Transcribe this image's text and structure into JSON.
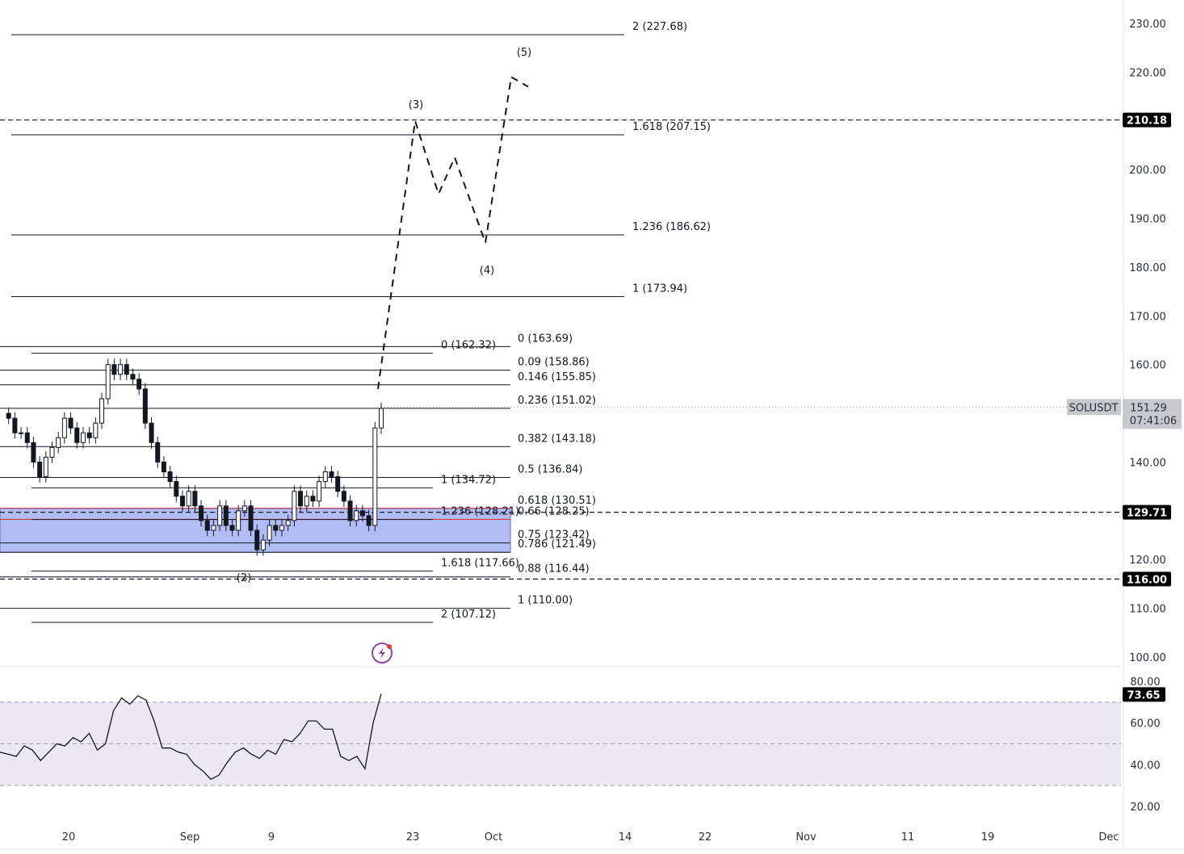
{
  "chart_data": {
    "type": "line",
    "symbol": "SOLUSDT",
    "price_axis": {
      "ticks": [
        "230.00",
        "220.00",
        "200.00",
        "190.00",
        "180.00",
        "170.00",
        "160.00",
        "140.00",
        "120.00",
        "110.00",
        "100.00"
      ],
      "tick_values": [
        230,
        220,
        200,
        190,
        180,
        170,
        160,
        140,
        120,
        110,
        100
      ]
    },
    "time_axis": {
      "ticks": [
        "20",
        "Sep",
        "9",
        "23",
        "Oct",
        "14",
        "22",
        "Nov",
        "11",
        "19",
        "Dec"
      ]
    },
    "rsi_axis": {
      "ticks": [
        "80.00",
        "60.00",
        "40.00",
        "20.00"
      ],
      "tick_values": [
        80,
        60,
        40,
        20
      ],
      "band": [
        30,
        70
      ]
    },
    "price_badges": [
      {
        "label": "210.18",
        "value": 210.18,
        "color": "#000000"
      },
      {
        "label": "129.71",
        "value": 129.71,
        "color": "#000000"
      },
      {
        "label": "116.00",
        "value": 116.0,
        "color": "#000000"
      }
    ],
    "current_price": {
      "symbol": "SOLUSDT",
      "price": "151.29",
      "countdown": "07:41:06",
      "value": 151.29
    },
    "rsi_value": {
      "label": "73.65",
      "value": 73.65
    },
    "fib_sets": [
      {
        "name": "extension",
        "levels": [
          {
            "label": "2 (227.68)",
            "value": 227.68
          },
          {
            "label": "1.618 (207.15)",
            "value": 207.15
          },
          {
            "label": "1.236 (186.62)",
            "value": 186.62
          },
          {
            "label": "1 (173.94)",
            "value": 173.94
          }
        ]
      },
      {
        "name": "retracement",
        "levels": [
          {
            "label": "0 (163.69)",
            "value": 163.69
          },
          {
            "label": "0.09 (158.86)",
            "value": 158.86
          },
          {
            "label": "0.146 (155.85)",
            "value": 155.85
          },
          {
            "label": "0.236 (151.02)",
            "value": 151.02
          },
          {
            "label": "0.382 (143.18)",
            "value": 143.18
          },
          {
            "label": "0.5 (136.84)",
            "value": 136.84
          },
          {
            "label": "0.618 (130.51)",
            "value": 130.51,
            "color": "#d32f2f"
          },
          {
            "label": "0.66 (128.25)",
            "value": 128.25,
            "color": "#d32f2f"
          },
          {
            "label": "0.75 (123.42)",
            "value": 123.42
          },
          {
            "label": "0.786 (121.49)",
            "value": 121.49
          },
          {
            "label": "0.88 (116.44)",
            "value": 116.44
          },
          {
            "label": "1 (110.00)",
            "value": 110.0
          }
        ]
      },
      {
        "name": "left-extension",
        "levels": [
          {
            "label": "0 (162.32)",
            "value": 162.32
          },
          {
            "label": "1 (134.72)",
            "value": 134.72
          },
          {
            "label": "1.236 (128.21)",
            "value": 128.21
          },
          {
            "label": "1.618 (117.66)",
            "value": 117.66
          },
          {
            "label": "2 (107.12)",
            "value": 107.12
          }
        ]
      }
    ],
    "support_zone": [
      121.49,
      130.51
    ],
    "wave_labels": [
      {
        "label": "(2)"
      },
      {
        "label": "(3)"
      },
      {
        "label": "(4)"
      },
      {
        "label": "(5)"
      }
    ],
    "projection_path": [
      [
        155.0
      ],
      [
        210.0
      ],
      [
        195.0
      ],
      [
        202.5
      ],
      [
        185.0
      ],
      [
        219.0
      ],
      [
        217.0
      ]
    ],
    "price_series": [
      150,
      149,
      146,
      146,
      144,
      140,
      137,
      141,
      143,
      145,
      149,
      147,
      144,
      146,
      145,
      148,
      153,
      160,
      158,
      160,
      158,
      157,
      155,
      148,
      144,
      140,
      138,
      136,
      133,
      131,
      134,
      131,
      128,
      126,
      127,
      131,
      127,
      126,
      130,
      131,
      126,
      122,
      124,
      127,
      126,
      127,
      128,
      134,
      131,
      133,
      132,
      136,
      138,
      137,
      134,
      132,
      128,
      130,
      129,
      127,
      147,
      151
    ],
    "rsi_series": [
      46,
      45,
      44,
      49,
      47,
      42,
      46,
      50,
      49,
      53,
      51,
      55,
      47,
      50,
      66,
      72,
      69,
      73,
      71,
      61,
      48,
      48,
      46,
      45,
      40,
      37,
      33,
      35,
      41,
      46,
      48,
      45,
      43,
      47,
      45,
      52,
      51,
      55,
      61,
      61,
      57,
      57,
      44,
      42,
      44,
      38,
      60,
      74
    ]
  }
}
